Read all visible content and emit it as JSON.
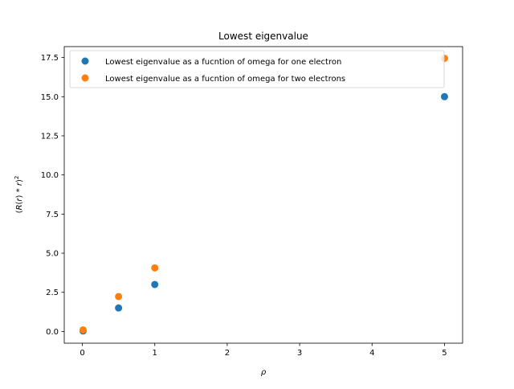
{
  "chart_data": {
    "type": "scatter",
    "title": "Lowest eigenvalue",
    "xlabel": "ρ",
    "ylabel_parts": [
      "(",
      "R",
      "(",
      "r",
      ")",
      " * ",
      "r",
      ")",
      "2"
    ],
    "xlim": [
      -0.25,
      5.25
    ],
    "ylim": [
      -0.75,
      18.2
    ],
    "xticks": [
      0,
      1,
      2,
      3,
      4,
      5
    ],
    "xtick_labels": [
      "0",
      "1",
      "2",
      "3",
      "4",
      "5"
    ],
    "yticks": [
      0.0,
      2.5,
      5.0,
      7.5,
      10.0,
      12.5,
      15.0,
      17.5
    ],
    "ytick_labels": [
      "0.0",
      "2.5",
      "5.0",
      "7.5",
      "10.0",
      "12.5",
      "15.0",
      "17.5"
    ],
    "grid": false,
    "legend_position": "top",
    "series": [
      {
        "name": "Lowest eigenvalue as a fucntion of omega for one electron",
        "color": "#1f77b4",
        "x": [
          0.01,
          0.5,
          1.0,
          5.0
        ],
        "y": [
          0.03,
          1.5,
          3.0,
          15.0
        ]
      },
      {
        "name": "Lowest eigenvalue as a fucntion of omega for two electrons",
        "color": "#ff7f0e",
        "x": [
          0.01,
          0.5,
          1.0,
          5.0
        ],
        "y": [
          0.1,
          2.23,
          4.06,
          17.45
        ]
      }
    ]
  }
}
